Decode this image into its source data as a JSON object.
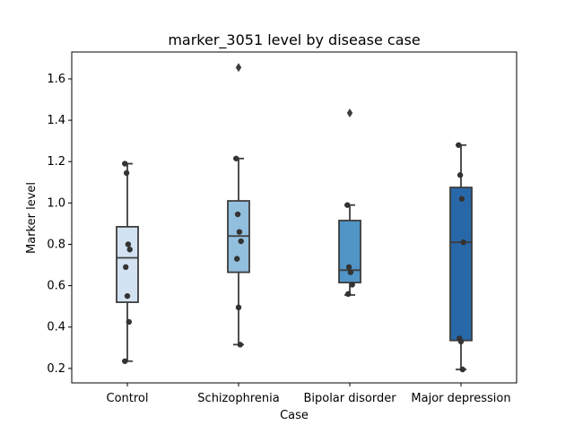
{
  "chart_data": {
    "type": "box",
    "title": "marker_3051 level by disease case",
    "xlabel": "Case",
    "ylabel": "Marker level",
    "categories": [
      "Control",
      "Schizophrenia",
      "Bipolar disorder",
      "Major depression"
    ],
    "ylim": [
      0.13,
      1.73
    ],
    "yticks": [
      0.2,
      0.4,
      0.6,
      0.8,
      1.0,
      1.2,
      1.4,
      1.6
    ],
    "ytick_labels": [
      "0.2",
      "0.4",
      "0.6",
      "0.8",
      "1.0",
      "1.2",
      "1.4",
      "1.6"
    ],
    "grid": false,
    "colors": [
      "#d2e2f2",
      "#92bfdd",
      "#5195c6",
      "#2868a9"
    ],
    "boxes": [
      {
        "category": "Control",
        "q1": 0.52,
        "median": 0.735,
        "q3": 0.885,
        "whisker_low": 0.235,
        "whisker_high": 1.19,
        "outliers": [],
        "points": [
          1.19,
          1.145,
          0.8,
          0.775,
          0.69,
          0.55,
          0.425,
          0.235
        ]
      },
      {
        "category": "Schizophrenia",
        "q1": 0.665,
        "median": 0.84,
        "q3": 1.01,
        "whisker_low": 0.315,
        "whisker_high": 1.215,
        "outliers": [
          1.655
        ],
        "points": [
          1.215,
          0.945,
          0.86,
          0.815,
          0.73,
          0.495,
          0.315
        ]
      },
      {
        "category": "Bipolar disorder",
        "q1": 0.615,
        "median": 0.675,
        "q3": 0.915,
        "whisker_low": 0.555,
        "whisker_high": 0.99,
        "outliers": [
          1.435
        ],
        "points": [
          0.99,
          0.69,
          0.665,
          0.605,
          0.56
        ]
      },
      {
        "category": "Major depression",
        "q1": 0.335,
        "median": 0.81,
        "q3": 1.075,
        "whisker_low": 0.195,
        "whisker_high": 1.28,
        "outliers": [],
        "points": [
          1.28,
          1.135,
          1.02,
          0.81,
          0.345,
          0.33,
          0.195
        ]
      }
    ]
  }
}
